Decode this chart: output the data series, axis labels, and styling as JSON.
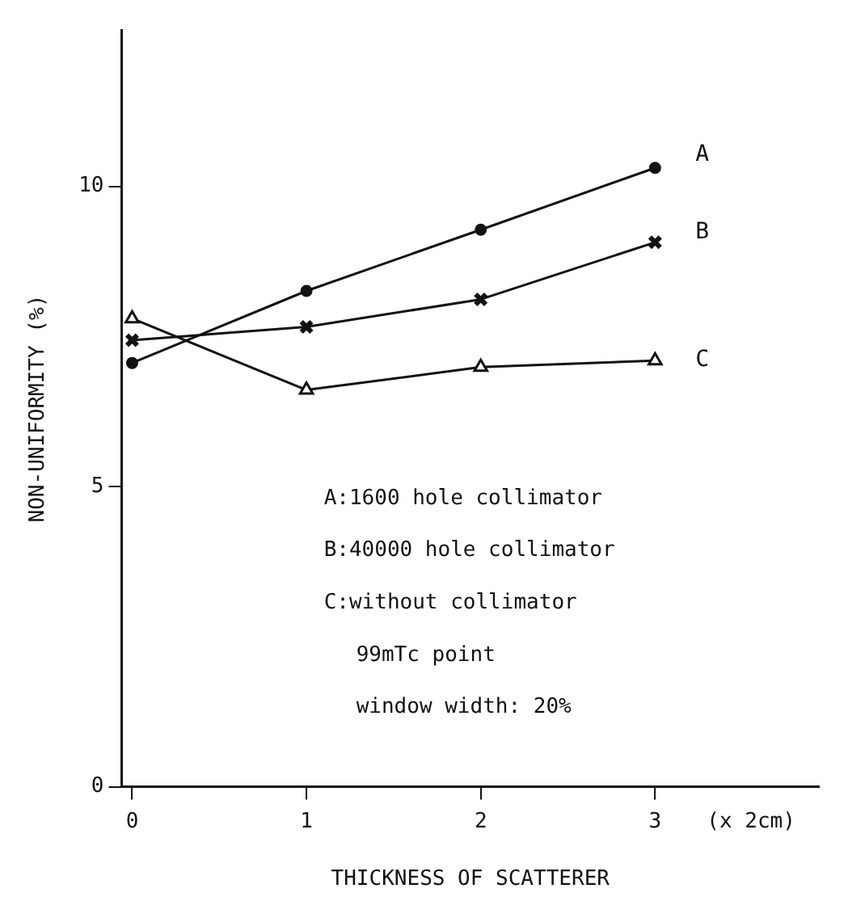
{
  "chart_data": {
    "type": "line",
    "xlabel": "THICKNESS OF SCATTERER",
    "ylabel": "NON-UNIFORMITY (%)",
    "x": [
      0,
      1,
      2,
      3
    ],
    "series": [
      {
        "name": "A",
        "color": "#111111",
        "marker": "circle",
        "values": [
          7.06,
          8.26,
          9.28,
          10.31
        ]
      },
      {
        "name": "B",
        "color": "#111111",
        "marker": "cross",
        "values": [
          7.44,
          7.66,
          8.12,
          9.07
        ]
      },
      {
        "name": "C",
        "color": "#111111",
        "marker": "triangle",
        "values": [
          7.8,
          6.61,
          6.99,
          7.1
        ]
      }
    ],
    "xlim": [
      -0.06,
      3.94
    ],
    "xticks": [
      0,
      1,
      2,
      3
    ],
    "ylim": [
      0,
      12.6
    ],
    "yticks": [
      0,
      5,
      10
    ],
    "annotations": [
      "(x 2cm)",
      "A:1600 hole collimator",
      "B:40000 hole collimator",
      "C:without collimator",
      "99mTc point",
      "window width: 20%"
    ],
    "grid": false,
    "legend": false
  }
}
